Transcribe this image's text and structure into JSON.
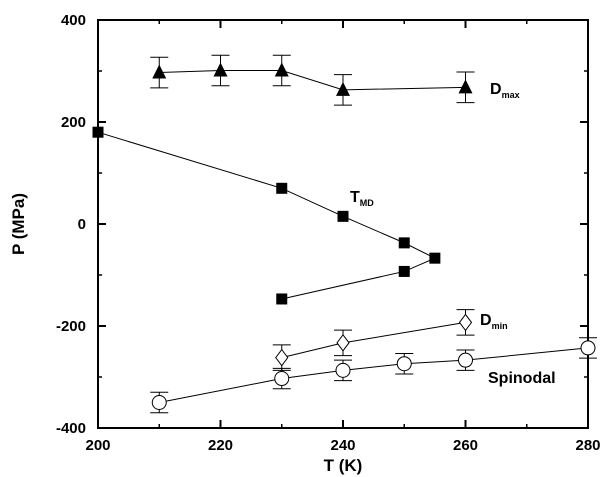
{
  "chart_data": {
    "type": "scatter",
    "title": "",
    "xlabel": "T (K)",
    "ylabel": "P (MPa)",
    "xlim": [
      200,
      280
    ],
    "ylim": [
      -400,
      400
    ],
    "xticks": [
      "200",
      "220",
      "240",
      "260",
      "280"
    ],
    "yticks": [
      "400",
      "200",
      "0",
      "-200",
      "-400"
    ],
    "grid": false,
    "series": [
      {
        "name": "Dmax",
        "label_main": "D",
        "label_sub": "max",
        "marker": "filled-triangle",
        "points": [
          {
            "x": 210,
            "y": 297,
            "err": 30
          },
          {
            "x": 220,
            "y": 301,
            "err": 30
          },
          {
            "x": 230,
            "y": 301,
            "err": 30
          },
          {
            "x": 240,
            "y": 263,
            "err": 30
          },
          {
            "x": 260,
            "y": 268,
            "err": 30
          }
        ]
      },
      {
        "name": "TMD",
        "label_main": "T",
        "label_sub": "MD",
        "marker": "filled-square",
        "points": [
          {
            "x": 200,
            "y": 180
          },
          {
            "x": 230,
            "y": 70
          },
          {
            "x": 240,
            "y": 15
          },
          {
            "x": 250,
            "y": -37
          },
          {
            "x": 255,
            "y": -67
          },
          {
            "x": 250,
            "y": -93
          },
          {
            "x": 230,
            "y": -147
          }
        ]
      },
      {
        "name": "Dmin",
        "label_main": "D",
        "label_sub": "min",
        "marker": "open-diamond",
        "points": [
          {
            "x": 230,
            "y": -262,
            "err": 25
          },
          {
            "x": 240,
            "y": -233,
            "err": 25
          },
          {
            "x": 260,
            "y": -193,
            "err": 25
          }
        ]
      },
      {
        "name": "Spinodal",
        "label_main": "Spinodal",
        "label_sub": "",
        "marker": "open-circle",
        "points": [
          {
            "x": 210,
            "y": -350,
            "err": 20
          },
          {
            "x": 230,
            "y": -303,
            "err": 20
          },
          {
            "x": 240,
            "y": -287,
            "err": 20
          },
          {
            "x": 250,
            "y": -274,
            "err": 20
          },
          {
            "x": 260,
            "y": -267,
            "err": 20
          },
          {
            "x": 280,
            "y": -243,
            "err": 20
          }
        ]
      }
    ]
  }
}
